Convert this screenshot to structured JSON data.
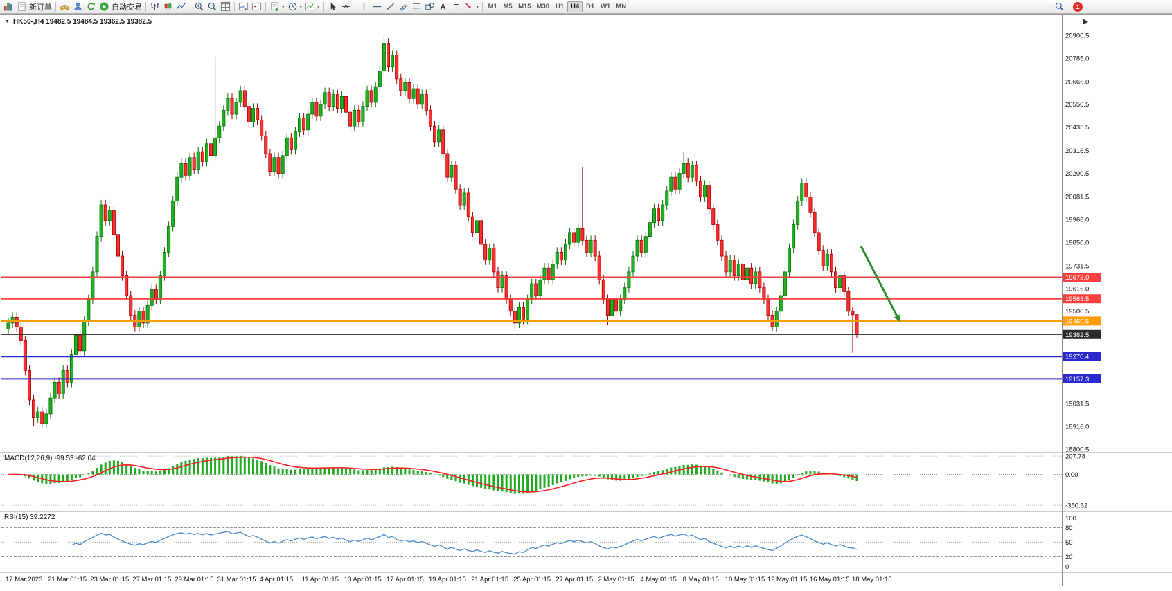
{
  "toolbar": {
    "groups": [
      {
        "items": [
          {
            "icon": "chart-mini-icon",
            "name": "chart-window-button"
          },
          {
            "icon": "new-order-icon",
            "label": "新订单",
            "name": "new-order-button"
          }
        ]
      },
      {
        "items": [
          {
            "icon": "market-watch-icon",
            "name": "market-watch-button"
          },
          {
            "icon": "navigator-icon",
            "name": "navigator-button"
          },
          {
            "icon": "refresh-icon",
            "name": "refresh-button"
          },
          {
            "icon": "autotrade-icon",
            "label": "自动交易",
            "name": "auto-trading-button"
          }
        ]
      },
      {
        "items": [
          {
            "icon": "bar-chart-icon",
            "name": "bar-chart-button"
          },
          {
            "icon": "candlestick-icon",
            "name": "candlestick-chart-button"
          },
          {
            "icon": "line-chart-icon",
            "name": "line-chart-button"
          }
        ]
      },
      {
        "items": [
          {
            "icon": "zoom-in-icon",
            "name": "zoom-in-button"
          },
          {
            "icon": "zoom-out-icon",
            "name": "zoom-out-button"
          },
          {
            "icon": "tile-windows-icon",
            "name": "tile-windows-button"
          }
        ]
      },
      {
        "items": [
          {
            "icon": "auto-scroll-icon",
            "name": "auto-scroll-button"
          },
          {
            "icon": "chart-shift-icon",
            "name": "chart-shift-button"
          }
        ]
      },
      {
        "items": [
          {
            "icon": "new-chart-icon",
            "caret": true,
            "name": "new-chart-button"
          },
          {
            "icon": "period-clock-icon",
            "caret": true,
            "name": "periods-button"
          },
          {
            "icon": "template-icon",
            "caret": true,
            "name": "templates-button"
          }
        ]
      },
      {
        "items": [
          {
            "icon": "cursor-icon",
            "name": "cursor-button"
          },
          {
            "icon": "crosshair-icon",
            "name": "crosshair-button"
          }
        ]
      },
      {
        "items": [
          {
            "icon": "vertical-line-icon",
            "name": "vertical-line-button"
          },
          {
            "icon": "horizontal-line-icon",
            "name": "horizontal-line-button"
          },
          {
            "icon": "trendline-icon",
            "name": "trendline-button"
          },
          {
            "icon": "channel-icon",
            "name": "equidistant-channel-button"
          },
          {
            "icon": "fibonacci-icon",
            "name": "fibonacci-button"
          },
          {
            "icon": "shapes-icon",
            "name": "shapes-button"
          },
          {
            "icon": "text-icon",
            "name": "text-button"
          },
          {
            "icon": "label-icon",
            "name": "text-label-button"
          },
          {
            "icon": "arrows-icon",
            "caret": true,
            "name": "arrows-button"
          }
        ]
      }
    ],
    "timeframes": [
      "M1",
      "M5",
      "M15",
      "M30",
      "H1",
      "H4",
      "D1",
      "W1",
      "MN"
    ],
    "active_timeframe": "H4",
    "notification_count": "1"
  },
  "chart": {
    "title": "HK50-,H4 19482.5 19484.5 19362.5 19382.5"
  },
  "chart_data": {
    "type": "candlestick",
    "symbol": "HK50-",
    "timeframe": "H4",
    "current_bar": {
      "open": 19482.5,
      "high": 19484.5,
      "low": 19362.5,
      "close": 19382.5
    },
    "ylim": [
      18800.5,
      20900.5
    ],
    "price_axis_labels": [
      "20900.5",
      "20785.0",
      "20666.0",
      "20550.5",
      "20435.5",
      "20316.5",
      "20200.5",
      "20081.5",
      "19966.0",
      "19850.0",
      "19731.5",
      "19616.0",
      "19500.5",
      "19031.5",
      "18916.0",
      "18800.5"
    ],
    "time_axis_labels": [
      "17 Mar 2023",
      "21 Mar 01:15",
      "23 Mar 01:15",
      "27 Mar 01:15",
      "29 Mar 01:15",
      "31 Mar 01:15",
      "4 Apr 01:15",
      "11 Apr 01:15",
      "13 Apr 01:15",
      "17 Apr 01:15",
      "19 Apr 01:15",
      "21 Apr 01:15",
      "25 Apr 01:15",
      "27 Apr 01:15",
      "2 May 01:15",
      "4 May 01:15",
      "8 May 01:15",
      "10 May 01:15",
      "12 May 01:15",
      "16 May 01:15",
      "18 May 01:15"
    ],
    "levels": [
      {
        "price": 19673.0,
        "label": "19673.0",
        "color": "#ff4040",
        "width": 2,
        "role": "resistance-line"
      },
      {
        "price": 19563.5,
        "label": "19563.5",
        "color": "#ff4040",
        "width": 2,
        "role": "resistance-line"
      },
      {
        "price": 19450.5,
        "label": "19450.5",
        "color": "#ff9c00",
        "width": 2.4,
        "role": "support-line"
      },
      {
        "price": 19382.5,
        "label": "19382.5",
        "color": "#2a2a2a",
        "width": 1.2,
        "role": "current-price-line"
      },
      {
        "price": 19270.4,
        "label": "19270.4",
        "color": "#2828cc",
        "width": 2,
        "role": "support-line"
      },
      {
        "price": 19157.3,
        "label": "19157.3",
        "color": "#2828cc",
        "width": 2,
        "role": "support-line"
      }
    ],
    "candles": {
      "open_first": 19410,
      "wick_pad": 25,
      "closes": [
        19440,
        19470,
        19420,
        19350,
        19200,
        19050,
        18960,
        18990,
        18930,
        18980,
        19060,
        19140,
        19080,
        19200,
        19140,
        19280,
        19380,
        19300,
        19450,
        19560,
        19700,
        19880,
        20040,
        19960,
        20010,
        19890,
        19780,
        19680,
        19580,
        19480,
        19420,
        19500,
        19440,
        19530,
        19610,
        19560,
        19680,
        19800,
        19930,
        20060,
        20180,
        20250,
        20190,
        20280,
        20220,
        20310,
        20260,
        20350,
        20290,
        20380,
        20440,
        20520,
        20580,
        20500,
        20560,
        20620,
        20540,
        20460,
        20530,
        20470,
        20390,
        20300,
        20210,
        20280,
        20200,
        20290,
        20380,
        20320,
        20410,
        20480,
        20420,
        20500,
        20560,
        20490,
        20550,
        20610,
        20540,
        20600,
        20530,
        20590,
        20510,
        20440,
        20520,
        20460,
        20540,
        20620,
        20560,
        20640,
        20720,
        20860,
        20740,
        20800,
        20680,
        20620,
        20660,
        20580,
        20630,
        20550,
        20600,
        20520,
        20440,
        20360,
        20420,
        20300,
        20180,
        20240,
        20120,
        20040,
        20100,
        19980,
        19900,
        19960,
        19840,
        19760,
        19820,
        19700,
        19620,
        19680,
        19560,
        19500,
        19440,
        19520,
        19460,
        19560,
        19640,
        19580,
        19660,
        19720,
        19660,
        19740,
        19800,
        19760,
        19840,
        19900,
        19850,
        19920,
        19860,
        19800,
        19860,
        19780,
        19660,
        19560,
        19480,
        19560,
        19500,
        19560,
        19620,
        19700,
        19780,
        19860,
        19800,
        19880,
        19950,
        20020,
        19960,
        20040,
        20110,
        20180,
        20120,
        20200,
        20250,
        20180,
        20240,
        20160,
        20080,
        20140,
        20020,
        19940,
        19860,
        19780,
        19700,
        19760,
        19680,
        19740,
        19660,
        19720,
        19640,
        19700,
        19620,
        19560,
        19480,
        19420,
        19500,
        19580,
        19700,
        19820,
        19940,
        20060,
        20150,
        20080,
        20000,
        19900,
        19810,
        19730,
        19790,
        19700,
        19620,
        19680,
        19600,
        19500,
        19482.5,
        19382.5
      ],
      "wick_overrides": {
        "6": {
          "low": 18916
        },
        "49": {
          "high": 20790
        },
        "89": {
          "high": 20905
        },
        "120": {
          "low": 19405
        },
        "136": {
          "high": 20230
        },
        "142": {
          "low": 19430
        },
        "160": {
          "high": 20310
        },
        "181": {
          "low": 19400
        },
        "200": {
          "low": 19290
        },
        "201": {
          "high": 19484.5,
          "low": 19362.5
        }
      }
    },
    "colors": {
      "up": "#1eb21e",
      "up_border": "#0a6e0a",
      "down": "#ff3030",
      "down_border": "#9c0000",
      "macd_hist": "#22aa22",
      "macd_signal": "#ff2020",
      "rsi": "#4f8fd0",
      "arrow": "#2e8b2e"
    },
    "annotations": [
      {
        "type": "down-arrow",
        "from_bar": 202,
        "from_price": 19830,
        "to_bar": 211,
        "to_price": 19455,
        "color": "#2e8b2e",
        "width": 3
      }
    ],
    "indicators": [
      {
        "name": "MACD",
        "params": [
          12,
          26,
          9
        ],
        "label": "MACD(12,26,9) -99.53 -62.04",
        "current_values": [
          "-99.53",
          "-62.04"
        ],
        "axis_labels": [
          "207.78",
          "0.00",
          "-350.62"
        ]
      },
      {
        "name": "RSI",
        "params": [
          15
        ],
        "label": "RSI(15) 39.2272",
        "current_value": "39.2272",
        "axis_labels": [
          "100",
          "80",
          "50",
          "20",
          "0"
        ],
        "levels": [
          80,
          50,
          20
        ]
      }
    ]
  }
}
